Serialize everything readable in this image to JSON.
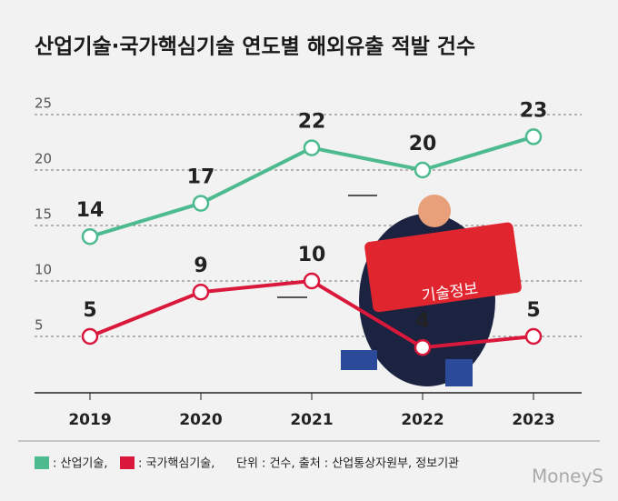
{
  "chart_data": {
    "type": "line",
    "title": "산업기술·국가핵심기술 연도별 해외유출 적발 건수",
    "categories": [
      "2019",
      "2020",
      "2021",
      "2022",
      "2023"
    ],
    "series": [
      {
        "name": ": 산업기술,",
        "color": "#4dbb8f",
        "values": [
          14,
          17,
          22,
          20,
          23
        ]
      },
      {
        "name": ": 국가핵심기술,",
        "color": "#d9183b",
        "values": [
          5,
          9,
          10,
          4,
          5
        ]
      }
    ],
    "note": "단위 : 건수, 출처 : 산업통상자원부, 정보기관",
    "ylim": [
      0,
      25
    ],
    "yticks": [
      5,
      10,
      15,
      20,
      25
    ],
    "grid": true,
    "illustration_text": "기술정보",
    "watermark": "MoneyS"
  }
}
